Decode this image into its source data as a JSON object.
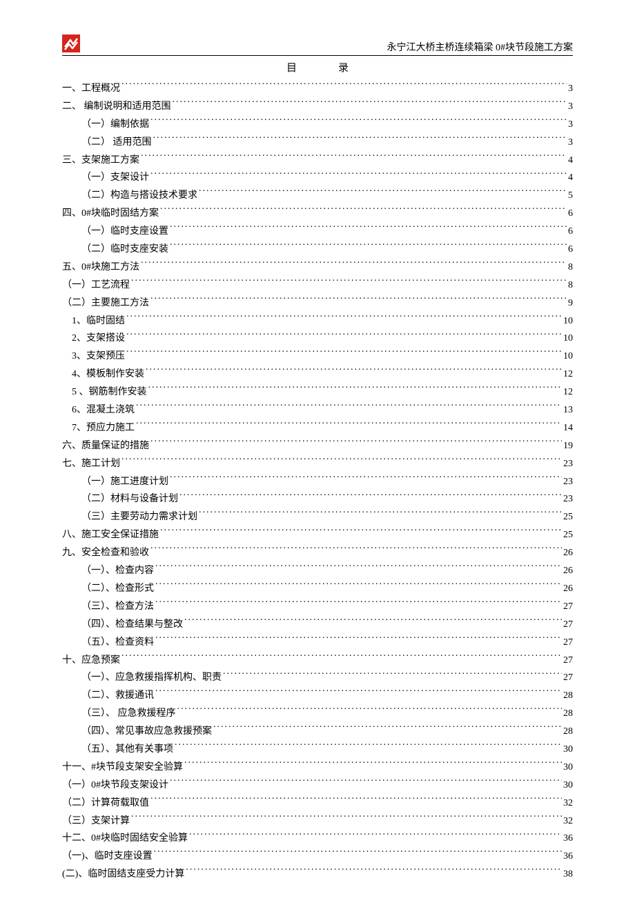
{
  "header": {
    "doc_title": "永宁江大桥主桥连续箱梁 0#块节段施工方案",
    "logo_colors": {
      "bg": "#d6261c",
      "fg": "#ffffff"
    }
  },
  "toc_title": "目录",
  "toc": [
    {
      "label": "一、工程概况",
      "page": "3",
      "indent": 0
    },
    {
      "label": "二、 编制说明和适用范围",
      "page": "3",
      "indent": 0
    },
    {
      "label": "（一）编制依据",
      "page": "3",
      "indent": 1
    },
    {
      "label": "（二） 适用范围",
      "page": "3",
      "indent": 1
    },
    {
      "label": "三、支架施工方案",
      "page": "4",
      "indent": 0
    },
    {
      "label": "（一）支架设计",
      "page": "4",
      "indent": 1
    },
    {
      "label": "（二）构造与搭设技术要求",
      "page": "5",
      "indent": 1
    },
    {
      "label": "四、0#块临时固结方案",
      "page": "6",
      "indent": 0
    },
    {
      "label": "（一）临时支座设置",
      "page": "6",
      "indent": 1
    },
    {
      "label": "（二）临时支座安装",
      "page": "6",
      "indent": 1
    },
    {
      "label": "五、0#块施工方法",
      "page": "8",
      "indent": 0
    },
    {
      "label": "（一）工艺流程",
      "page": "8",
      "indent": 0
    },
    {
      "label": "（二）主要施工方法",
      "page": "9",
      "indent": 0
    },
    {
      "label": "1、临时固结",
      "page": "10",
      "indent": 2
    },
    {
      "label": "2、支架搭设",
      "page": "10",
      "indent": 2
    },
    {
      "label": "3、支架预压",
      "page": "10",
      "indent": 2
    },
    {
      "label": "4、模板制作安装",
      "page": "12",
      "indent": 2
    },
    {
      "label": "5 、钢筋制作安装",
      "page": "12",
      "indent": 2
    },
    {
      "label": "6、混凝土浇筑",
      "page": "13",
      "indent": 2
    },
    {
      "label": "7、预应力施工",
      "page": "14",
      "indent": 2
    },
    {
      "label": "六、质量保证的措施",
      "page": "19",
      "indent": 0
    },
    {
      "label": "七、施工计划",
      "page": "23",
      "indent": 0
    },
    {
      "label": "（一）施工进度计划",
      "page": "23",
      "indent": 1
    },
    {
      "label": "（二）材料与设备计划",
      "page": "23",
      "indent": 1
    },
    {
      "label": "（三）主要劳动力需求计划",
      "page": "25",
      "indent": 1
    },
    {
      "label": "八、施工安全保证措施",
      "page": "25",
      "indent": 0
    },
    {
      "label": "九、安全检查和验收",
      "page": "26",
      "indent": 0
    },
    {
      "label": "（一）、检查内容",
      "page": "26",
      "indent": 1
    },
    {
      "label": "（二）、检查形式",
      "page": "26",
      "indent": 1
    },
    {
      "label": "（三）、检查方法",
      "page": "27",
      "indent": 1
    },
    {
      "label": "（四）、检查结果与整改",
      "page": "27",
      "indent": 1
    },
    {
      "label": "（五）、检查资料",
      "page": "27",
      "indent": 1
    },
    {
      "label": "十、应急预案",
      "page": "27",
      "indent": 0
    },
    {
      "label": "（一）、应急救援指挥机构、职责",
      "page": "27",
      "indent": 1
    },
    {
      "label": "（二）、救援通讯",
      "page": "28",
      "indent": 1
    },
    {
      "label": "（三）、 应急救援程序",
      "page": "28",
      "indent": 1
    },
    {
      "label": "（四）、常见事故应急救援预案",
      "page": "28",
      "indent": 1
    },
    {
      "label": "（五）、其他有关事项",
      "page": "30",
      "indent": 1
    },
    {
      "label": "十一、#块节段支架安全验算",
      "page": "30",
      "indent": 0
    },
    {
      "label": "（一）0#块节段支架设计",
      "page": "30",
      "indent": 0
    },
    {
      "label": "（二）计算荷载取值",
      "page": "32",
      "indent": 0
    },
    {
      "label": "（三）支架计算",
      "page": "32",
      "indent": 0
    },
    {
      "label": "十二、0#块临时固结安全验算",
      "page": "36",
      "indent": 0
    },
    {
      "label": "（一)、临时支座设置",
      "page": "36",
      "indent": 0
    },
    {
      "label": "(二)、临时固结支座受力计算",
      "page": "38",
      "indent": 0
    }
  ]
}
